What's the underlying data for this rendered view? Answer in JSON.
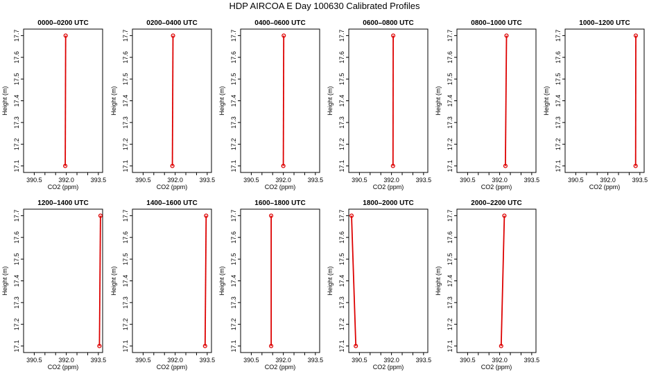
{
  "main_title": "HDP AIRCOA E  Day 100630  Calibrated Profiles",
  "colors": {
    "profile": "#dd0000",
    "frame": "#000000"
  },
  "chart_data": [
    {
      "type": "line",
      "title": "0000–0200 UTC",
      "xlabel": "CO2 (ppm)",
      "ylabel": "Height (m)",
      "xlim": [
        390.0,
        393.7
      ],
      "ylim": [
        17.07,
        17.73
      ],
      "xticks": [
        "390.5",
        "392.0",
        "393.5"
      ],
      "xticks_minor": [
        "391.0",
        "391.5",
        "392.5",
        "393.0"
      ],
      "yticks": [
        "17.1",
        "17.2",
        "17.3",
        "17.4",
        "17.5",
        "17.6",
        "17.7"
      ],
      "series": [
        {
          "x": [
            391.95,
            391.97
          ],
          "y": [
            17.1,
            17.7
          ]
        }
      ]
    },
    {
      "type": "line",
      "title": "0200–0400 UTC",
      "xlabel": "CO2 (ppm)",
      "ylabel": "Height (m)",
      "xlim": [
        390.0,
        393.7
      ],
      "ylim": [
        17.07,
        17.73
      ],
      "xticks": [
        "390.5",
        "392.0",
        "393.5"
      ],
      "xticks_minor": [
        "391.0",
        "391.5",
        "392.5",
        "393.0"
      ],
      "yticks": [
        "17.1",
        "17.2",
        "17.3",
        "17.4",
        "17.5",
        "17.6",
        "17.7"
      ],
      "series": [
        {
          "x": [
            391.87,
            391.9
          ],
          "y": [
            17.1,
            17.7
          ]
        }
      ]
    },
    {
      "type": "line",
      "title": "0400–0600 UTC",
      "xlabel": "CO2 (ppm)",
      "ylabel": "Height (m)",
      "xlim": [
        390.0,
        393.7
      ],
      "ylim": [
        17.07,
        17.73
      ],
      "xticks": [
        "390.5",
        "392.0",
        "393.5"
      ],
      "xticks_minor": [
        "391.0",
        "391.5",
        "392.5",
        "393.0"
      ],
      "yticks": [
        "17.1",
        "17.2",
        "17.3",
        "17.4",
        "17.5",
        "17.6",
        "17.7"
      ],
      "series": [
        {
          "x": [
            392.0,
            392.02
          ],
          "y": [
            17.1,
            17.7
          ]
        }
      ]
    },
    {
      "type": "line",
      "title": "0600–0800 UTC",
      "xlabel": "CO2 (ppm)",
      "ylabel": "Height (m)",
      "xlim": [
        390.0,
        393.7
      ],
      "ylim": [
        17.07,
        17.73
      ],
      "xticks": [
        "390.5",
        "392.0",
        "393.5"
      ],
      "xticks_minor": [
        "391.0",
        "391.5",
        "392.5",
        "393.0"
      ],
      "yticks": [
        "17.1",
        "17.2",
        "17.3",
        "17.4",
        "17.5",
        "17.6",
        "17.7"
      ],
      "series": [
        {
          "x": [
            392.07,
            392.08
          ],
          "y": [
            17.1,
            17.7
          ]
        }
      ]
    },
    {
      "type": "line",
      "title": "0800–1000 UTC",
      "xlabel": "CO2 (ppm)",
      "ylabel": "Height (m)",
      "xlim": [
        390.0,
        393.7
      ],
      "ylim": [
        17.07,
        17.73
      ],
      "xticks": [
        "390.5",
        "392.0",
        "393.5"
      ],
      "xticks_minor": [
        "391.0",
        "391.5",
        "392.5",
        "393.0"
      ],
      "yticks": [
        "17.1",
        "17.2",
        "17.3",
        "17.4",
        "17.5",
        "17.6",
        "17.7"
      ],
      "series": [
        {
          "x": [
            392.27,
            392.32
          ],
          "y": [
            17.1,
            17.7
          ]
        }
      ]
    },
    {
      "type": "line",
      "title": "1000–1200 UTC",
      "xlabel": "CO2 (ppm)",
      "ylabel": "Height (m)",
      "xlim": [
        390.0,
        393.7
      ],
      "ylim": [
        17.07,
        17.73
      ],
      "xticks": [
        "390.5",
        "392.0",
        "393.5"
      ],
      "xticks_minor": [
        "391.0",
        "391.5",
        "392.5",
        "393.0"
      ],
      "yticks": [
        "17.1",
        "17.2",
        "17.3",
        "17.4",
        "17.5",
        "17.6",
        "17.7"
      ],
      "series": [
        {
          "x": [
            393.3,
            393.31
          ],
          "y": [
            17.1,
            17.7
          ]
        }
      ]
    },
    {
      "type": "line",
      "title": "1200–1400 UTC",
      "xlabel": "CO2 (ppm)",
      "ylabel": "Height (m)",
      "xlim": [
        390.0,
        393.7
      ],
      "ylim": [
        17.07,
        17.73
      ],
      "xticks": [
        "390.5",
        "392.0",
        "393.5"
      ],
      "xticks_minor": [
        "391.0",
        "391.5",
        "392.5",
        "393.0"
      ],
      "yticks": [
        "17.1",
        "17.2",
        "17.3",
        "17.4",
        "17.5",
        "17.6",
        "17.7"
      ],
      "series": [
        {
          "x": [
            393.55,
            393.6
          ],
          "y": [
            17.1,
            17.7
          ]
        }
      ]
    },
    {
      "type": "line",
      "title": "1400–1600 UTC",
      "xlabel": "CO2 (ppm)",
      "ylabel": "Height (m)",
      "xlim": [
        390.0,
        393.7
      ],
      "ylim": [
        17.07,
        17.73
      ],
      "xticks": [
        "390.5",
        "392.0",
        "393.5"
      ],
      "xticks_minor": [
        "391.0",
        "391.5",
        "392.5",
        "393.0"
      ],
      "yticks": [
        "17.1",
        "17.2",
        "17.3",
        "17.4",
        "17.5",
        "17.6",
        "17.7"
      ],
      "series": [
        {
          "x": [
            393.4,
            393.45
          ],
          "y": [
            17.1,
            17.7
          ]
        }
      ]
    },
    {
      "type": "line",
      "title": "1600–1800 UTC",
      "xlabel": "CO2 (ppm)",
      "ylabel": "Height (m)",
      "xlim": [
        390.0,
        393.7
      ],
      "ylim": [
        17.07,
        17.73
      ],
      "xticks": [
        "390.5",
        "392.0",
        "393.5"
      ],
      "xticks_minor": [
        "391.0",
        "391.5",
        "392.5",
        "393.0"
      ],
      "yticks": [
        "17.1",
        "17.2",
        "17.3",
        "17.4",
        "17.5",
        "17.6",
        "17.7"
      ],
      "series": [
        {
          "x": [
            391.43,
            391.43
          ],
          "y": [
            17.1,
            17.7
          ]
        }
      ]
    },
    {
      "type": "line",
      "title": "1800–2000 UTC",
      "xlabel": "CO2 (ppm)",
      "ylabel": "Height (m)",
      "xlim": [
        390.0,
        393.7
      ],
      "ylim": [
        17.07,
        17.73
      ],
      "xticks": [
        "390.5",
        "392.0",
        "393.5"
      ],
      "xticks_minor": [
        "391.0",
        "391.5",
        "392.5",
        "393.0"
      ],
      "yticks": [
        "17.1",
        "17.2",
        "17.3",
        "17.4",
        "17.5",
        "17.6",
        "17.7"
      ],
      "series": [
        {
          "x": [
            390.33,
            390.13
          ],
          "y": [
            17.1,
            17.7
          ]
        }
      ]
    },
    {
      "type": "line",
      "title": "2000–2200 UTC",
      "xlabel": "CO2 (ppm)",
      "ylabel": "Height (m)",
      "xlim": [
        390.0,
        393.7
      ],
      "ylim": [
        17.07,
        17.73
      ],
      "xticks": [
        "390.5",
        "392.0",
        "393.5"
      ],
      "xticks_minor": [
        "391.0",
        "391.5",
        "392.5",
        "393.0"
      ],
      "yticks": [
        "17.1",
        "17.2",
        "17.3",
        "17.4",
        "17.5",
        "17.6",
        "17.7"
      ],
      "series": [
        {
          "x": [
            392.07,
            392.22
          ],
          "y": [
            17.1,
            17.7
          ]
        }
      ]
    }
  ]
}
